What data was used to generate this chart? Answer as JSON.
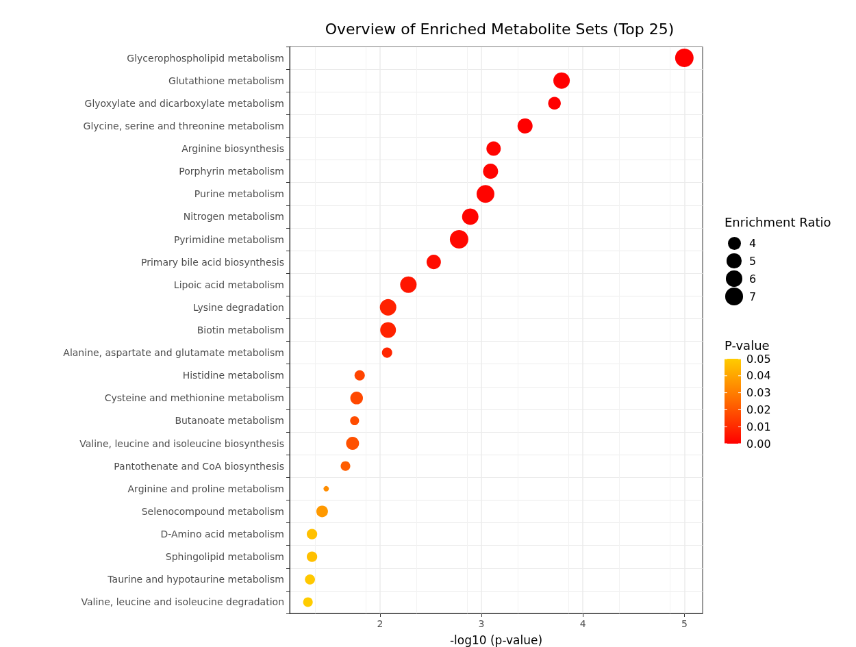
{
  "chart_data": {
    "type": "bubble",
    "title": "Overview of Enriched Metabolite Sets (Top 25)",
    "xlabel": "-log10 (p-value)",
    "legend_title": "Enrichment Ratio",
    "clabel": "P-value",
    "orientation": "horizontal",
    "categories": [
      "Glycerophospholipid metabolism",
      "Glutathione metabolism",
      "Glyoxylate and dicarboxylate metabolism",
      "Glycine, serine and threonine metabolism",
      "Arginine biosynthesis",
      "Porphyrin metabolism",
      "Purine metabolism",
      "Nitrogen metabolism",
      "Pyrimidine metabolism",
      "Primary bile acid biosynthesis",
      "Lipoic acid metabolism",
      "Lysine degradation",
      "Biotin metabolism",
      "Alanine, aspartate and glutamate metabolism",
      "Histidine metabolism",
      "Cysteine and methionine metabolism",
      "Butanoate metabolism",
      "Valine, leucine and isoleucine biosynthesis",
      "Pantothenate and CoA biosynthesis",
      "Arginine and proline metabolism",
      "Selenocompound metabolism",
      "D-Amino acid metabolism",
      "Sphingolipid metabolism",
      "Taurine and hypotaurine metabolism",
      "Valine, leucine and isoleucine degradation"
    ],
    "values": [
      5.0,
      3.79,
      3.72,
      3.43,
      3.12,
      3.09,
      3.04,
      2.89,
      2.78,
      2.53,
      2.28,
      2.08,
      2.08,
      2.07,
      1.8,
      1.77,
      1.75,
      1.73,
      1.66,
      1.47,
      1.43,
      1.33,
      1.33,
      1.31,
      1.29
    ],
    "sizes": [
      8.1,
      6.4,
      3.8,
      5.4,
      4.9,
      5.4,
      7.5,
      6.4,
      8.1,
      4.9,
      6.4,
      6.4,
      5.9,
      2.5,
      2.5,
      3.8,
      1.9,
      4.0,
      2.2,
      0.7,
      3.2,
      2.6,
      2.6,
      2.4,
      2.2
    ],
    "cvalues": [
      0.0,
      0.0,
      0.0,
      0.0,
      0.001,
      0.001,
      0.001,
      0.001,
      0.002,
      0.003,
      0.005,
      0.008,
      0.008,
      0.009,
      0.016,
      0.017,
      0.018,
      0.019,
      0.022,
      0.034,
      0.037,
      0.047,
      0.047,
      0.049,
      0.05
    ],
    "size_legend": [
      4,
      5,
      6,
      7
    ],
    "clim": [
      0,
      0.05
    ],
    "cticks": [
      {
        "value": 0,
        "label": "0.00"
      },
      {
        "value": 0.01,
        "label": "0.01"
      },
      {
        "value": 0.02,
        "label": "0.02"
      },
      {
        "value": 0.03,
        "label": "0.03"
      },
      {
        "value": 0.04,
        "label": "0.04"
      },
      {
        "value": 0.05,
        "label": "0.05"
      }
    ],
    "xlim": [
      1.11,
      5.18
    ],
    "xticks": [
      2,
      3,
      4,
      5
    ],
    "grid": true
  }
}
